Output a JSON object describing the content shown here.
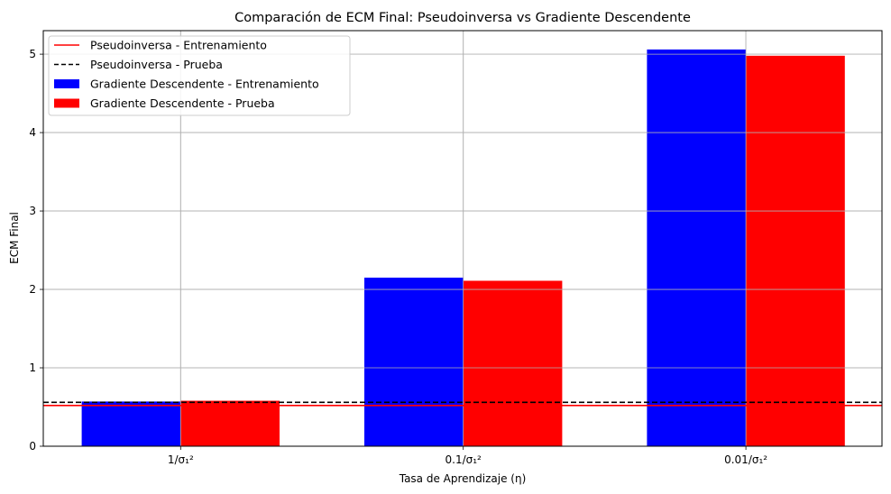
{
  "chart_data": {
    "type": "bar",
    "title": "Comparación de ECM Final: Pseudoinversa vs Gradiente Descendente",
    "xlabel": "Tasa de Aprendizaje (η)",
    "ylabel": "ECM Final",
    "categories": [
      "1/σ₁²",
      "0.1/σ₁²",
      "0.01/σ₁²"
    ],
    "series": [
      {
        "name": "Gradiente Descendente - Entrenamiento",
        "color": "#0000ff",
        "values": [
          0.57,
          2.15,
          5.06
        ]
      },
      {
        "name": "Gradiente Descendente - Prueba",
        "color": "#ff0000",
        "values": [
          0.58,
          2.11,
          4.98
        ]
      }
    ],
    "reference_lines": [
      {
        "name": "Pseudoinversa - Entrenamiento",
        "value": 0.52,
        "color": "#ff0000",
        "style": "solid"
      },
      {
        "name": "Pseudoinversa - Prueba",
        "value": 0.56,
        "color": "#000000",
        "style": "dashed"
      }
    ],
    "ylim": [
      0,
      5.3
    ],
    "yticks": [
      0,
      1,
      2,
      3,
      4,
      5
    ],
    "grid": true,
    "legend_position": "top-left"
  }
}
